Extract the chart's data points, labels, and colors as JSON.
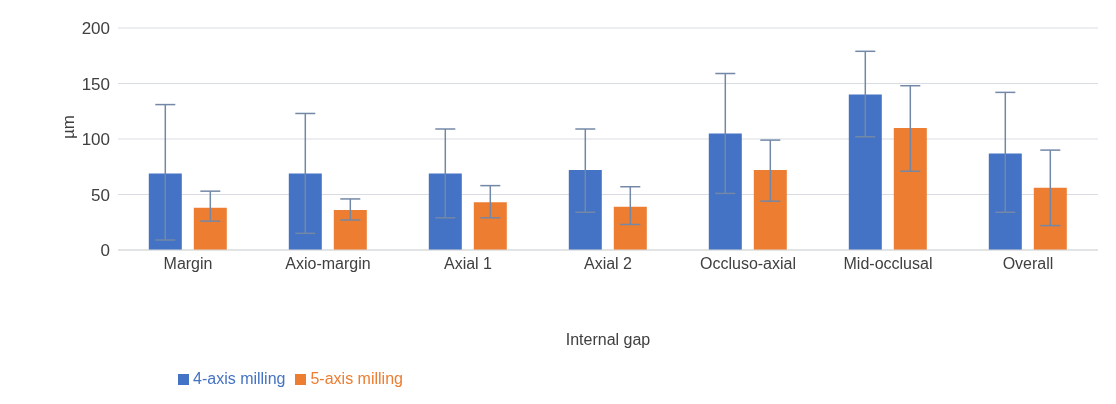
{
  "chart_data": {
    "type": "bar",
    "xlabel": "Internal gap",
    "ylabel": "µm",
    "categories": [
      "Margin",
      "Axio-margin",
      "Axial 1",
      "Axial 2",
      "Occluso-axial",
      "Mid-occlusal",
      "Overall"
    ],
    "series": [
      {
        "name": "4-axis milling",
        "color": "#4472c4",
        "values": [
          69,
          69,
          69,
          72,
          105,
          140,
          87
        ],
        "errors": [
          [
            9,
            131
          ],
          [
            15,
            123
          ],
          [
            29,
            109
          ],
          [
            34,
            109
          ],
          [
            51,
            159
          ],
          [
            102,
            179
          ],
          [
            34,
            142
          ]
        ]
      },
      {
        "name": "5-axis milling",
        "color": "#ed7d31",
        "values": [
          38,
          36,
          43,
          39,
          72,
          110,
          56
        ],
        "errors": [
          [
            26,
            53
          ],
          [
            27,
            46
          ],
          [
            29,
            58
          ],
          [
            23,
            57
          ],
          [
            44,
            99
          ],
          [
            71,
            148
          ],
          [
            22,
            90
          ]
        ]
      }
    ],
    "ylim": [
      0,
      200
    ],
    "yticks": [
      0,
      50,
      100,
      150,
      200
    ],
    "grid": "y",
    "legend": "bottom left"
  }
}
